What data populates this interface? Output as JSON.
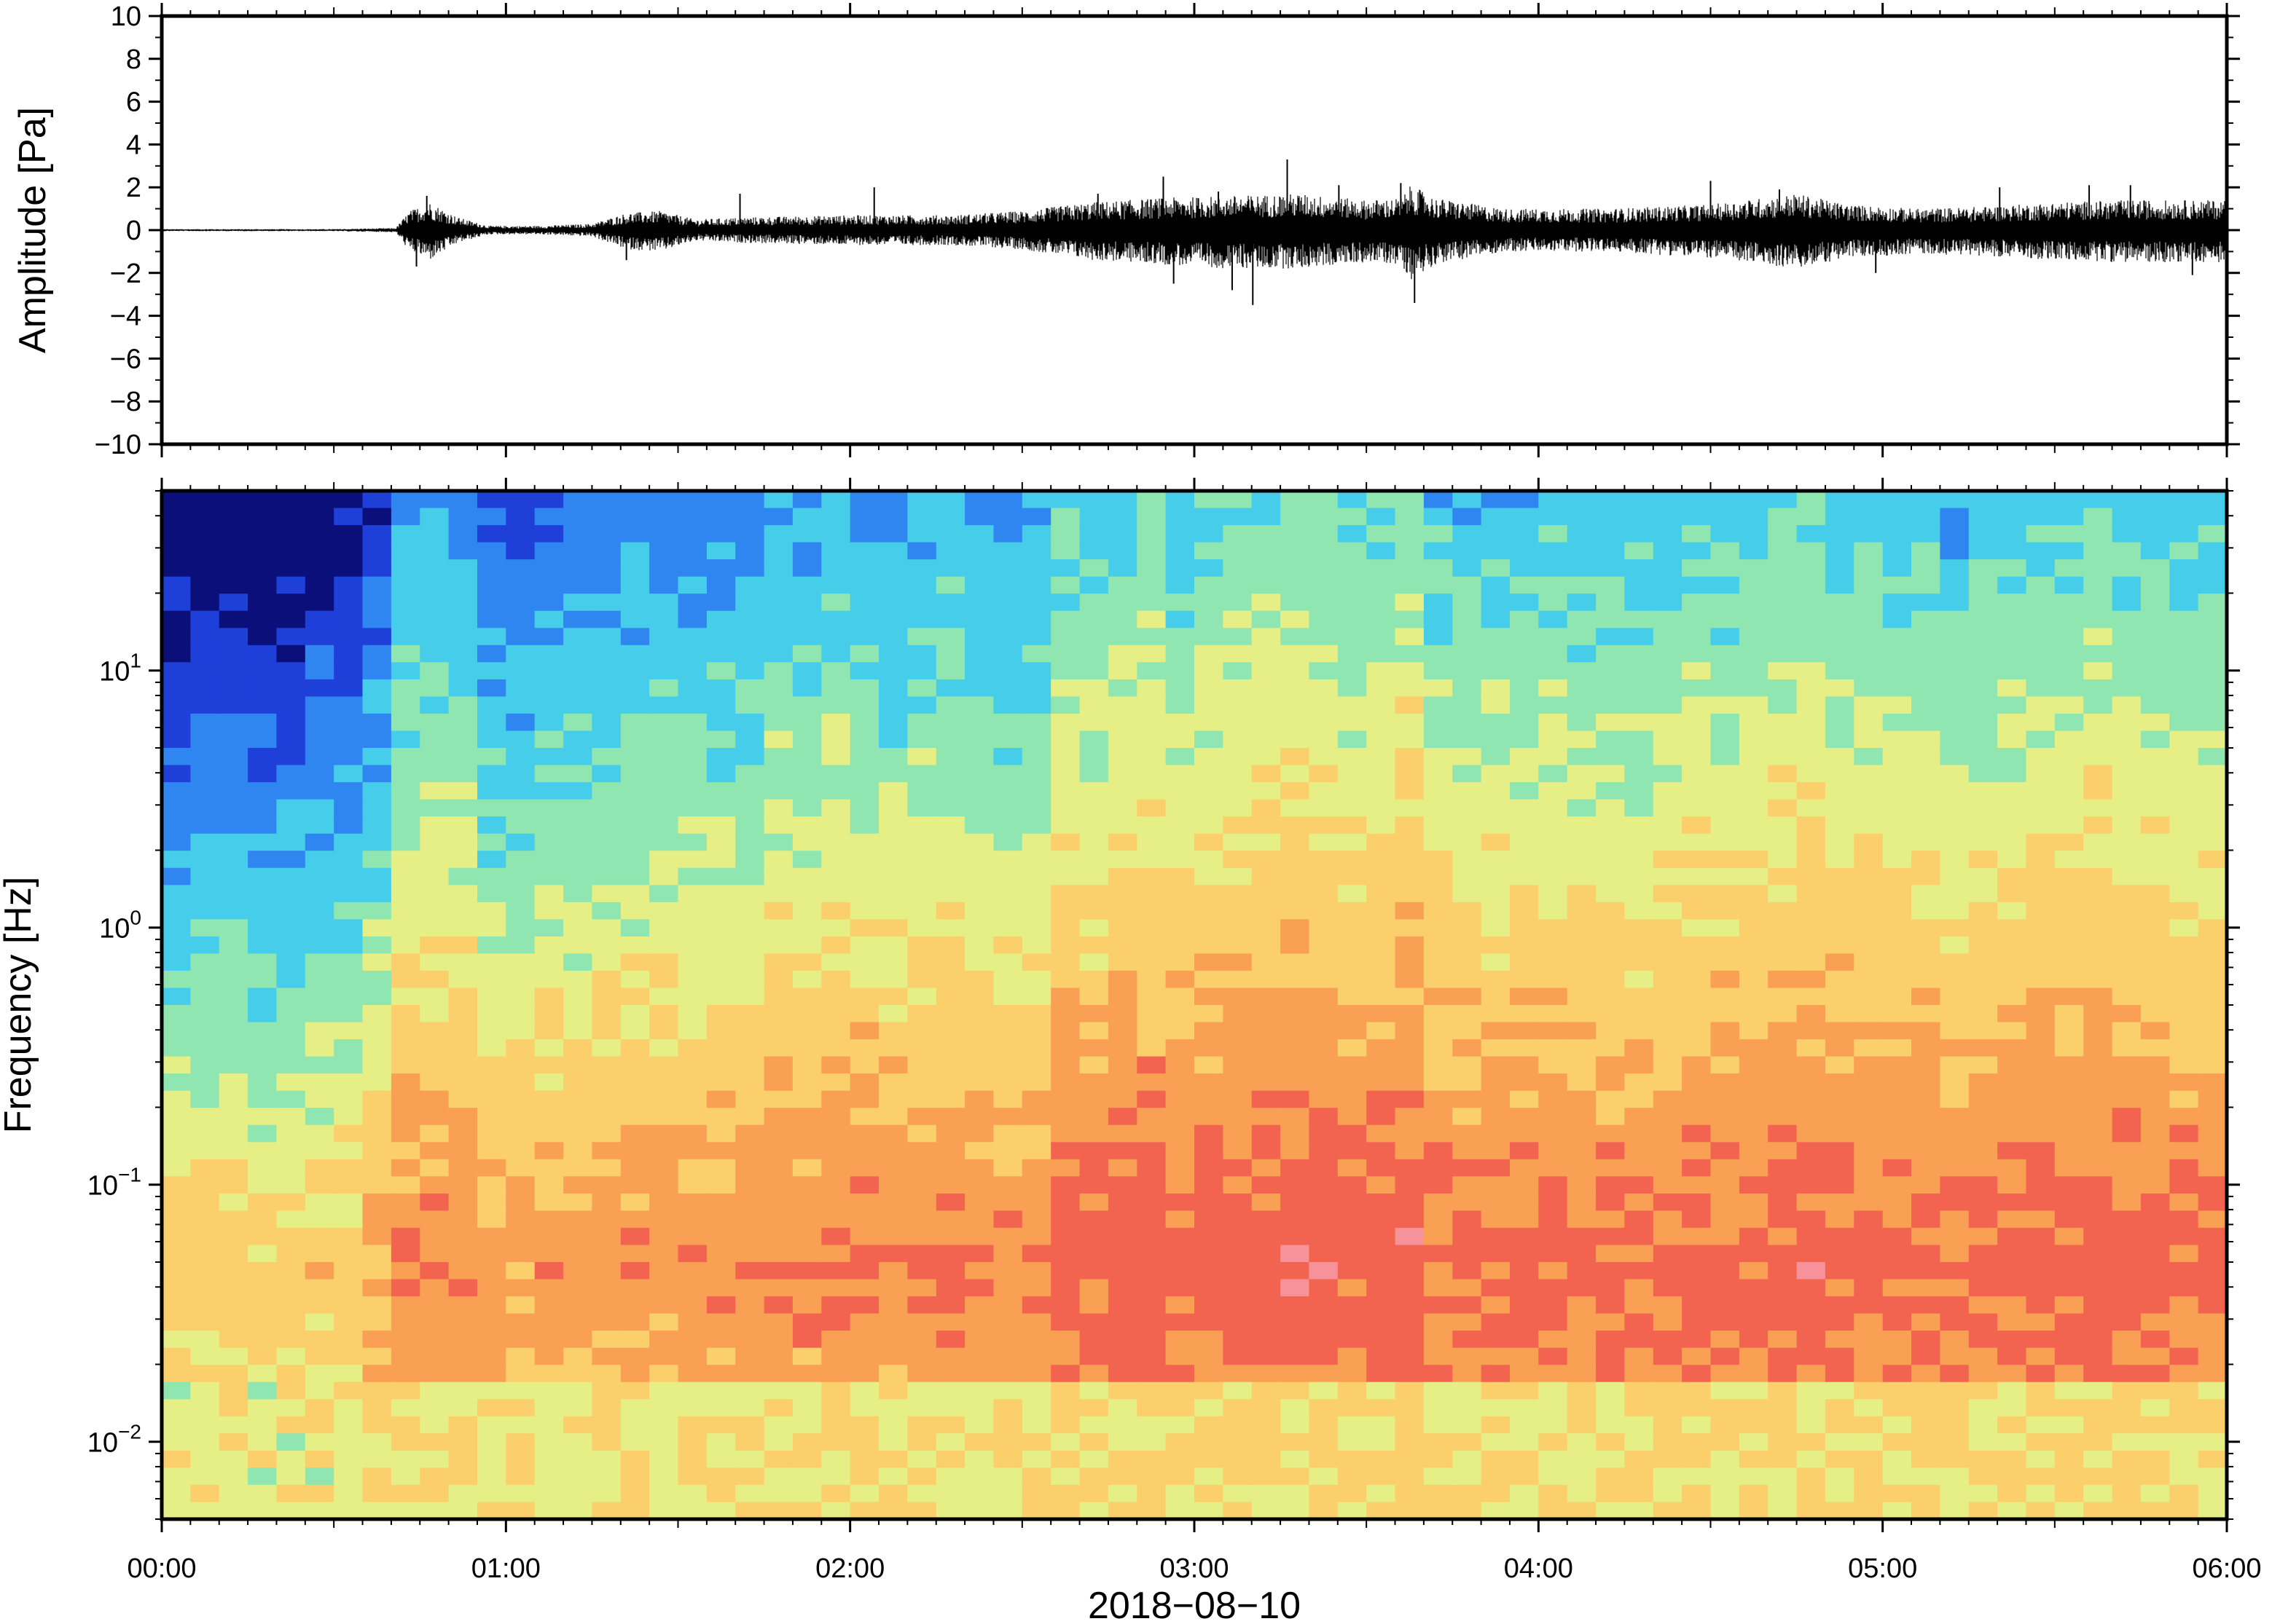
{
  "chart_data": [
    {
      "type": "line",
      "panel": "waveform",
      "ylabel": "Amplitude [Pa]",
      "ylim": [
        -10,
        10
      ],
      "yticks": [
        {
          "value": 10,
          "label": "10"
        },
        {
          "value": 8,
          "label": "8"
        },
        {
          "value": 6,
          "label": "6"
        },
        {
          "value": 4,
          "label": "4"
        },
        {
          "value": 2,
          "label": "2"
        },
        {
          "value": 0,
          "label": "0"
        },
        {
          "value": -2,
          "label": "−2"
        },
        {
          "value": -4,
          "label": "−4"
        },
        {
          "value": -6,
          "label": "−6"
        },
        {
          "value": -8,
          "label": "−8"
        },
        {
          "value": -10,
          "label": "−10"
        }
      ],
      "xlim_hours": [
        0,
        6
      ],
      "color": "#000000",
      "envelope": {
        "hours": [
          0,
          0.5,
          0.68,
          0.72,
          0.78,
          0.86,
          0.95,
          1.1,
          1.25,
          1.35,
          1.45,
          1.55,
          1.7,
          2.0,
          2.3,
          2.5,
          2.7,
          2.9,
          3.1,
          3.3,
          3.5,
          3.6,
          3.63,
          3.7,
          3.9,
          4.2,
          4.5,
          4.65,
          4.75,
          4.9,
          5.1,
          5.3,
          5.5,
          5.7,
          6.0
        ],
        "upper": [
          0.05,
          0.05,
          0.1,
          0.9,
          1.3,
          0.6,
          0.2,
          0.2,
          0.3,
          0.8,
          0.9,
          0.5,
          0.6,
          0.7,
          0.7,
          0.9,
          1.3,
          1.5,
          1.6,
          1.7,
          1.4,
          1.5,
          2.1,
          1.5,
          1.0,
          1.0,
          1.2,
          1.5,
          1.7,
          1.2,
          1.0,
          1.1,
          1.3,
          1.4,
          1.4
        ],
        "lower": [
          -0.05,
          -0.05,
          -0.1,
          -1.0,
          -1.4,
          -0.6,
          -0.2,
          -0.2,
          -0.3,
          -0.9,
          -1.0,
          -0.5,
          -0.6,
          -0.7,
          -0.7,
          -0.9,
          -1.4,
          -1.6,
          -1.8,
          -1.8,
          -1.5,
          -1.6,
          -2.3,
          -1.6,
          -1.0,
          -1.0,
          -1.3,
          -1.6,
          -1.8,
          -1.3,
          -1.1,
          -1.2,
          -1.4,
          -1.5,
          -1.5
        ]
      },
      "spikes": [
        {
          "hour": 0.77,
          "value": 1.6
        },
        {
          "hour": 0.74,
          "value": -1.7
        },
        {
          "hour": 1.35,
          "value": -1.4
        },
        {
          "hour": 1.68,
          "value": 1.7
        },
        {
          "hour": 2.07,
          "value": 2.0
        },
        {
          "hour": 2.72,
          "value": 1.7
        },
        {
          "hour": 2.91,
          "value": 2.5
        },
        {
          "hour": 2.94,
          "value": -2.5
        },
        {
          "hour": 3.07,
          "value": 1.8
        },
        {
          "hour": 3.11,
          "value": -2.8
        },
        {
          "hour": 3.17,
          "value": -3.5
        },
        {
          "hour": 3.27,
          "value": 3.3
        },
        {
          "hour": 3.42,
          "value": 2.1
        },
        {
          "hour": 3.6,
          "value": 2.2
        },
        {
          "hour": 3.64,
          "value": -3.4
        },
        {
          "hour": 4.5,
          "value": 2.3
        },
        {
          "hour": 4.7,
          "value": 1.9
        },
        {
          "hour": 4.98,
          "value": -2.0
        },
        {
          "hour": 5.34,
          "value": 2.0
        },
        {
          "hour": 5.6,
          "value": 2.1
        },
        {
          "hour": 5.72,
          "value": 2.1
        },
        {
          "hour": 5.9,
          "value": -2.1
        }
      ]
    },
    {
      "type": "heatmap",
      "panel": "spectrogram",
      "ylabel": "Frequency [Hz]",
      "yscale": "log",
      "ylim": [
        0.005,
        50
      ],
      "ytick_values": [
        0.01,
        0.1,
        1,
        10
      ],
      "ytick_labels": [
        {
          "base": "10",
          "exp": "−2"
        },
        {
          "base": "10",
          "exp": "−1"
        },
        {
          "base": "10",
          "exp": "0"
        },
        {
          "base": "10",
          "exp": "1"
        }
      ],
      "colormap": [
        "#0b0f7a",
        "#1f3fd9",
        "#2f86f0",
        "#46cde9",
        "#90e6b0",
        "#e6ef85",
        "#fbcf6c",
        "#f9a055",
        "#f26450",
        "#f7929a"
      ],
      "xlim_hours": [
        0,
        6
      ],
      "column_hours": 0.0833,
      "activity_by_hour": {
        "hours": [
          0,
          0.3,
          0.6,
          0.65,
          0.9,
          1.0,
          1.1,
          1.3,
          1.7,
          2.0,
          2.3,
          2.45,
          2.6,
          2.9,
          3.1,
          3.3,
          3.5,
          3.62,
          3.7,
          4.0,
          4.4,
          4.7,
          4.78,
          4.9,
          5.2,
          5.4,
          5.7,
          6.0
        ],
        "level": [
          0.25,
          0.22,
          0.28,
          0.62,
          0.6,
          0.45,
          0.5,
          0.6,
          0.62,
          0.65,
          0.66,
          0.58,
          0.72,
          0.78,
          0.8,
          0.8,
          0.76,
          0.84,
          0.74,
          0.72,
          0.72,
          0.74,
          0.84,
          0.72,
          0.7,
          0.74,
          0.76,
          0.76
        ]
      }
    }
  ],
  "axes": {
    "xticks": [
      {
        "hour": 0,
        "label": "00:00"
      },
      {
        "hour": 1,
        "label": "01:00"
      },
      {
        "hour": 2,
        "label": "02:00"
      },
      {
        "hour": 3,
        "label": "03:00"
      },
      {
        "hour": 4,
        "label": "04:00"
      },
      {
        "hour": 5,
        "label": "05:00"
      },
      {
        "hour": 6,
        "label": "06:00"
      }
    ],
    "xlabel": "2018−08−10"
  }
}
